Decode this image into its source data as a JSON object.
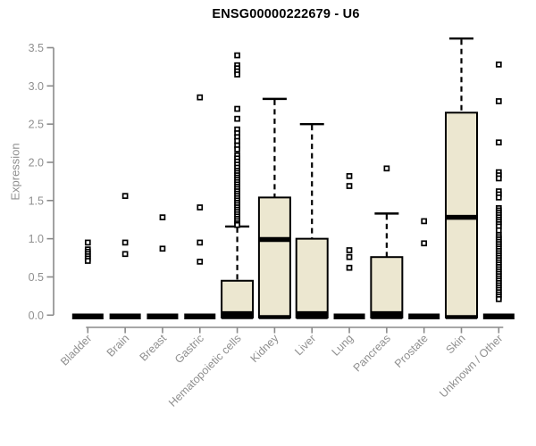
{
  "title": "ENSG00000222679 - U6",
  "ylabel": "Expression",
  "colors": {
    "box_fill": "#ece7d0",
    "box_stroke": "#000000",
    "median": "#000000",
    "whisker": "#000000",
    "outlier_fill": "#ffffff",
    "axis": "#8a8a8a",
    "tick_label": "#8f8f8f",
    "title": "#000000"
  },
  "chart_data": {
    "type": "boxplot",
    "title": "ENSG00000222679 - U6",
    "xlabel": "",
    "ylabel": "Expression",
    "ylim": [
      0,
      3.65
    ],
    "yticks": [
      0,
      0.5,
      1,
      1.5,
      2,
      2.5,
      3,
      3.5
    ],
    "grid": false,
    "legend": "none",
    "categories": [
      "Bladder",
      "Brain",
      "Breast",
      "Gastric",
      "Hematopoietic cells",
      "Kidney",
      "Liver",
      "Lung",
      "Pancreas",
      "Prostate",
      "Skin",
      "Unknown / Other"
    ],
    "series": [
      {
        "label": "Bladder",
        "collapsed": true,
        "q1": 0,
        "median": 0.02,
        "q3": 0.02,
        "whisker_low": 0,
        "whisker_high": 0.02,
        "outliers": [
          0.95,
          0.86,
          0.83,
          0.8,
          0.77,
          0.74,
          0.71
        ]
      },
      {
        "label": "Brain",
        "collapsed": true,
        "q1": 0,
        "median": 0.02,
        "q3": 0.02,
        "whisker_low": 0,
        "whisker_high": 0.02,
        "outliers": [
          1.56,
          0.95,
          0.8
        ]
      },
      {
        "label": "Breast",
        "collapsed": true,
        "q1": 0,
        "median": 0.02,
        "q3": 0.02,
        "whisker_low": 0,
        "whisker_high": 0.02,
        "outliers": [
          1.28,
          0.87
        ]
      },
      {
        "label": "Gastric",
        "collapsed": true,
        "q1": 0,
        "median": 0.02,
        "q3": 0.02,
        "whisker_low": 0,
        "whisker_high": 0.02,
        "outliers": [
          2.85,
          1.41,
          0.95,
          0.7
        ]
      },
      {
        "label": "Hematopoietic cells",
        "collapsed": false,
        "q1": 0,
        "median": 0.02,
        "q3": 0.45,
        "whisker_low": 0,
        "whisker_high": 1.16,
        "outliers": [
          3.4,
          3.27,
          3.23,
          3.19,
          3.15,
          2.7,
          2.57,
          2.43,
          2.38,
          2.33,
          2.28,
          2.22,
          2.17,
          2.09,
          2.05,
          2.01,
          1.97,
          1.93,
          1.89,
          1.86,
          1.83,
          1.8,
          1.77,
          1.74,
          1.71,
          1.68,
          1.65,
          1.62,
          1.59,
          1.56,
          1.53,
          1.5,
          1.47,
          1.44,
          1.41,
          1.38,
          1.35,
          1.32,
          1.29,
          1.26,
          1.23,
          1.2,
          1.18
        ]
      },
      {
        "label": "Kidney",
        "collapsed": false,
        "q1": 0,
        "median": 0.99,
        "q3": 1.54,
        "whisker_low": 0,
        "whisker_high": 2.83,
        "outliers": []
      },
      {
        "label": "Liver",
        "collapsed": false,
        "q1": 0,
        "median": 0.02,
        "q3": 1.0,
        "whisker_low": 0,
        "whisker_high": 2.5,
        "outliers": []
      },
      {
        "label": "Lung",
        "collapsed": true,
        "q1": 0,
        "median": 0.02,
        "q3": 0.02,
        "whisker_low": 0,
        "whisker_high": 0.02,
        "outliers": [
          1.82,
          1.69,
          0.85,
          0.76,
          0.62
        ]
      },
      {
        "label": "Pancreas",
        "collapsed": false,
        "q1": 0,
        "median": 0.02,
        "q3": 0.76,
        "whisker_low": 0,
        "whisker_high": 1.33,
        "outliers": [
          1.92
        ]
      },
      {
        "label": "Prostate",
        "collapsed": true,
        "q1": 0,
        "median": 0.02,
        "q3": 0.02,
        "whisker_low": 0,
        "whisker_high": 0.02,
        "outliers": [
          1.23,
          0.94
        ]
      },
      {
        "label": "Skin",
        "collapsed": false,
        "q1": 0,
        "median": 1.28,
        "q3": 2.65,
        "whisker_low": 0,
        "whisker_high": 3.62,
        "outliers": []
      },
      {
        "label": "Unknown / Other",
        "collapsed": true,
        "q1": 0,
        "median": 0.02,
        "q3": 0.02,
        "whisker_low": 0,
        "whisker_high": 0.02,
        "outliers": [
          3.28,
          2.8,
          2.26,
          1.87,
          1.83,
          1.79,
          1.62,
          1.58,
          1.54,
          1.4,
          1.37,
          1.34,
          1.31,
          1.28,
          1.25,
          1.22,
          1.19,
          1.16,
          1.11,
          1.05,
          1.02,
          0.99,
          0.96,
          0.93,
          0.9,
          0.87,
          0.84,
          0.81,
          0.78,
          0.75,
          0.72,
          0.69,
          0.66,
          0.63,
          0.6,
          0.57,
          0.54,
          0.51,
          0.48,
          0.45,
          0.42,
          0.39,
          0.36,
          0.33,
          0.3,
          0.27,
          0.24,
          0.21
        ]
      }
    ]
  }
}
